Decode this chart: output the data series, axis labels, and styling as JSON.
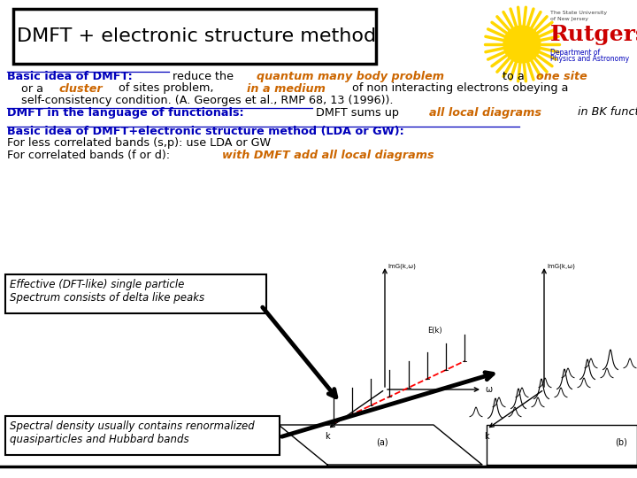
{
  "bg": "#ffffff",
  "title_text": "DMFT + electronic structure method",
  "text_black": "#000000",
  "text_blue": "#0000bb",
  "text_orange": "#cc6600",
  "text_red": "#cc0000",
  "line1": [
    {
      "t": "Basic idea of DMFT:",
      "c": "#0000bb",
      "b": true,
      "i": false,
      "u": true
    },
    {
      "t": " reduce the ",
      "c": "#000000",
      "b": false,
      "i": false,
      "u": false
    },
    {
      "t": "quantum many body problem",
      "c": "#cc6600",
      "b": true,
      "i": true,
      "u": false
    },
    {
      "t": " to a ",
      "c": "#000000",
      "b": false,
      "i": false,
      "u": false
    },
    {
      "t": "one site",
      "c": "#cc6600",
      "b": true,
      "i": true,
      "u": false
    }
  ],
  "line2": [
    {
      "t": "    or a ",
      "c": "#000000",
      "b": false,
      "i": false,
      "u": false
    },
    {
      "t": "cluster",
      "c": "#cc6600",
      "b": true,
      "i": true,
      "u": false
    },
    {
      "t": " of sites problem, ",
      "c": "#000000",
      "b": false,
      "i": false,
      "u": false
    },
    {
      "t": "in a medium",
      "c": "#cc6600",
      "b": true,
      "i": true,
      "u": false
    },
    {
      "t": " of non interacting electrons obeying a",
      "c": "#000000",
      "b": false,
      "i": false,
      "u": false
    }
  ],
  "line3": [
    {
      "t": "    self-consistency condition. (A. Georges et al., RMP 68, 13 (1996)).",
      "c": "#000000",
      "b": false,
      "i": false,
      "u": false
    }
  ],
  "line4": [
    {
      "t": "DMFT in the language of functionals:",
      "c": "#0000bb",
      "b": true,
      "i": false,
      "u": true
    },
    {
      "t": " DMFT sums up ",
      "c": "#000000",
      "b": false,
      "i": false,
      "u": false
    },
    {
      "t": "all local diagrams",
      "c": "#cc6600",
      "b": true,
      "i": true,
      "u": false
    },
    {
      "t": " in BK functional",
      "c": "#000000",
      "b": false,
      "i": true,
      "u": false
    }
  ],
  "line5": [
    {
      "t": "Basic idea of DMFT+electronic structure method (LDA or GW):",
      "c": "#0000bb",
      "b": true,
      "i": false,
      "u": true
    }
  ],
  "line6": [
    {
      "t": "For less correlated bands (s,p): use LDA or GW",
      "c": "#000000",
      "b": false,
      "i": false,
      "u": false
    }
  ],
  "line7": [
    {
      "t": "For correlated bands (f or d): ",
      "c": "#000000",
      "b": false,
      "i": false,
      "u": false
    },
    {
      "t": "with DMFT add all local diagrams",
      "c": "#cc6600",
      "b": true,
      "i": true,
      "u": false
    }
  ]
}
